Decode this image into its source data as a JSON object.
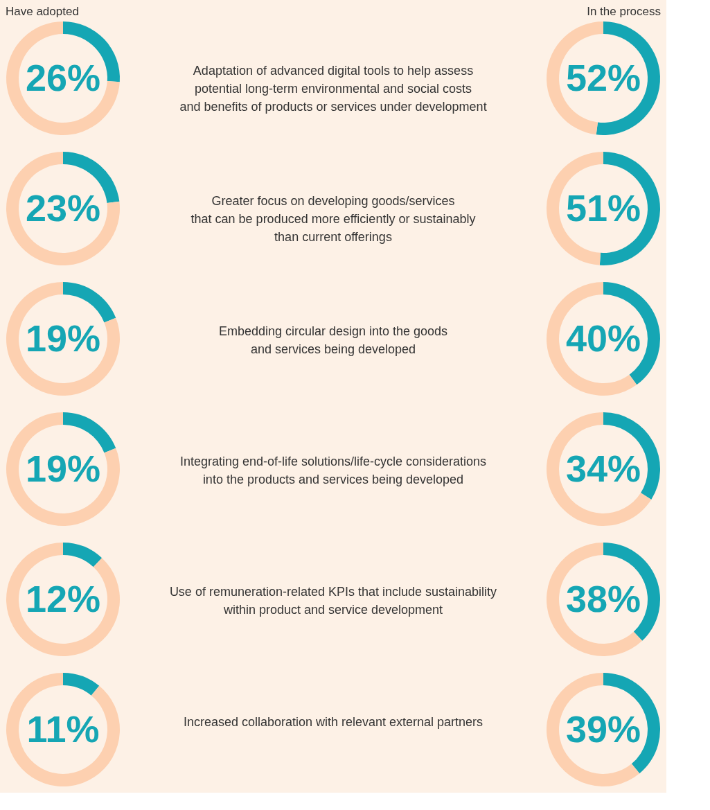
{
  "chart_data": [
    {
      "type": "donut",
      "title": "Have adopted",
      "categories": [
        null,
        null
      ],
      "values": [
        26,
        74
      ],
      "colors": [
        "#15a6b4",
        "#fdd0b0"
      ],
      "value_labels": [
        "26%",
        null
      ]
    },
    {
      "type": "other",
      "annotations": [
        "Adaptation of advanced digital tools to help assess\npotential long-term environmental and social costs\nand benefits of products or services under development"
      ]
    },
    {
      "type": "donut",
      "title": "In the process",
      "categories": [
        null,
        null
      ],
      "values": [
        52,
        48
      ],
      "colors": [
        "#15a6b4",
        "#fdd0b0"
      ],
      "value_labels": [
        "52%",
        null
      ]
    },
    {
      "type": "donut",
      "categories": [
        null,
        null
      ],
      "values": [
        23,
        77
      ],
      "colors": [
        "#15a6b4",
        "#fdd0b0"
      ],
      "value_labels": [
        "23%",
        null
      ]
    },
    {
      "type": "other",
      "annotations": [
        "Greater focus on developing goods/services\nthat can be produced more efficiently or sustainably\nthan current offerings"
      ]
    },
    {
      "type": "donut",
      "categories": [
        null,
        null
      ],
      "values": [
        51,
        49
      ],
      "colors": [
        "#15a6b4",
        "#fdd0b0"
      ],
      "value_labels": [
        "51%",
        null
      ]
    },
    {
      "type": "donut",
      "categories": [
        null,
        null
      ],
      "values": [
        19,
        81
      ],
      "colors": [
        "#15a6b4",
        "#fdd0b0"
      ],
      "value_labels": [
        "19%",
        null
      ]
    },
    {
      "type": "other",
      "annotations": [
        "Embedding circular design into the goods\nand services being developed"
      ]
    },
    {
      "type": "donut",
      "categories": [
        null,
        null
      ],
      "values": [
        40,
        60
      ],
      "colors": [
        "#15a6b4",
        "#fdd0b0"
      ],
      "value_labels": [
        "40%",
        null
      ]
    },
    {
      "type": "donut",
      "categories": [
        null,
        null
      ],
      "values": [
        19,
        81
      ],
      "colors": [
        "#15a6b4",
        "#fdd0b0"
      ],
      "value_labels": [
        "19%",
        null
      ]
    },
    {
      "type": "other",
      "annotations": [
        "Integrating end-of-life solutions/life-cycle considerations\ninto the products and services being developed"
      ]
    },
    {
      "type": "donut",
      "categories": [
        null,
        null
      ],
      "values": [
        34,
        66
      ],
      "colors": [
        "#15a6b4",
        "#fdd0b0"
      ],
      "value_labels": [
        "34%",
        null
      ]
    },
    {
      "type": "donut",
      "categories": [
        null,
        null
      ],
      "values": [
        12,
        88
      ],
      "colors": [
        "#15a6b4",
        "#fdd0b0"
      ],
      "value_labels": [
        "12%",
        null
      ]
    },
    {
      "type": "other",
      "annotations": [
        "Use of remuneration-related KPIs that include sustainability\nwithin product and service development"
      ]
    },
    {
      "type": "donut",
      "categories": [
        null,
        null
      ],
      "values": [
        38,
        62
      ],
      "colors": [
        "#15a6b4",
        "#fdd0b0"
      ],
      "value_labels": [
        "38%",
        null
      ]
    },
    {
      "type": "donut",
      "categories": [
        null,
        null
      ],
      "values": [
        11,
        89
      ],
      "colors": [
        "#15a6b4",
        "#fdd0b0"
      ],
      "value_labels": [
        "11%",
        null
      ]
    },
    {
      "type": "other",
      "annotations": [
        "Increased collaboration with relevant external partners"
      ]
    },
    {
      "type": "donut",
      "categories": [
        null,
        null
      ],
      "values": [
        39,
        61
      ],
      "colors": [
        "#15a6b4",
        "#fdd0b0"
      ],
      "value_labels": [
        "39%",
        null
      ]
    }
  ]
}
